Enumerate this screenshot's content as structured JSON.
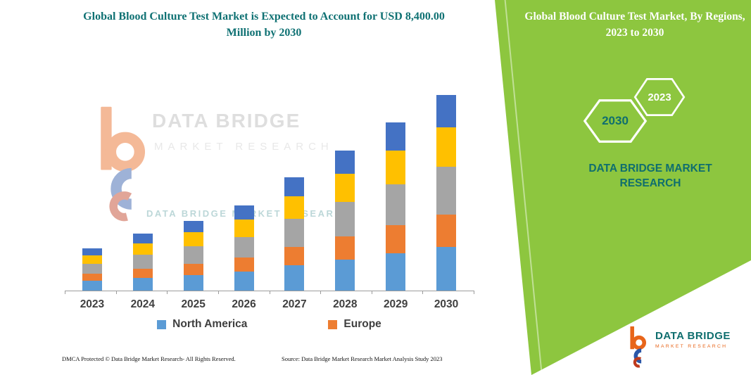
{
  "left_panel": {
    "title": "Global Blood Culture Test Market is Expected to Account for USD 8,400.00 Million by 2030",
    "footer_left": "DMCA Protected © Data Bridge Market Research- All Rights Reserved.",
    "footer_right": "Source: Data Bridge Market Research Market Analysis Study 2023",
    "watermark": {
      "line1": "DATA BRIDGE",
      "line2": "MARKET RESEARCH",
      "line3": "DATA BRIDGE MARKET RESEARCH"
    }
  },
  "right_panel": {
    "title": "Global Blood Culture Test Market, By Regions, 2023 to 2030",
    "hexagon_2030_label": "2030",
    "hexagon_2023_label": "2023",
    "brand_line1": "DATA BRIDGE MARKET",
    "brand_line2": "RESEARCH"
  },
  "footer_logo": {
    "title": "DATA BRIDGE",
    "subtitle": "MARKET RESEARCH"
  },
  "colors": {
    "panel_green": "#8DC63F",
    "teal": "#0F6E6E",
    "logo_orange": "#E8651A",
    "logo_blue": "#2B57A8",
    "logo_red": "#BE3A1D"
  },
  "chart_data": {
    "type": "stacked-bar",
    "title": "Global Blood Culture Test Market, By Regions, 2023 to 2030",
    "unit": "USD Million",
    "categories": [
      "2023",
      "2024",
      "2025",
      "2026",
      "2027",
      "2028",
      "2029",
      "2030"
    ],
    "series": [
      {
        "name": "North America",
        "color": "#5B9BD5",
        "in_legend": true,
        "values": [
          420,
          550,
          670,
          820,
          1090,
          1340,
          1610,
          1880
        ]
      },
      {
        "name": "Europe",
        "color": "#ED7D31",
        "in_legend": true,
        "values": [
          300,
          400,
          490,
          610,
          790,
          1000,
          1190,
          1400
        ]
      },
      {
        "name": "unlabeled region gray",
        "color": "#A5A5A5",
        "in_legend": false,
        "values": [
          430,
          580,
          730,
          880,
          1190,
          1460,
          1760,
          2040
        ]
      },
      {
        "name": "unlabeled region yellow",
        "color": "#FFC000",
        "in_legend": false,
        "values": [
          370,
          490,
          610,
          730,
          970,
          1220,
          1460,
          1700
        ]
      },
      {
        "name": "unlabeled region dark blue",
        "color": "#4472C4",
        "in_legend": false,
        "values": [
          300,
          430,
          490,
          610,
          820,
          1000,
          1190,
          1380
        ]
      }
    ],
    "totals": [
      1820,
      2450,
      2990,
      3650,
      4860,
      6020,
      7210,
      8400
    ],
    "ylim": [
      0,
      8400
    ],
    "gridlines": false,
    "legend_position": "bottom"
  }
}
